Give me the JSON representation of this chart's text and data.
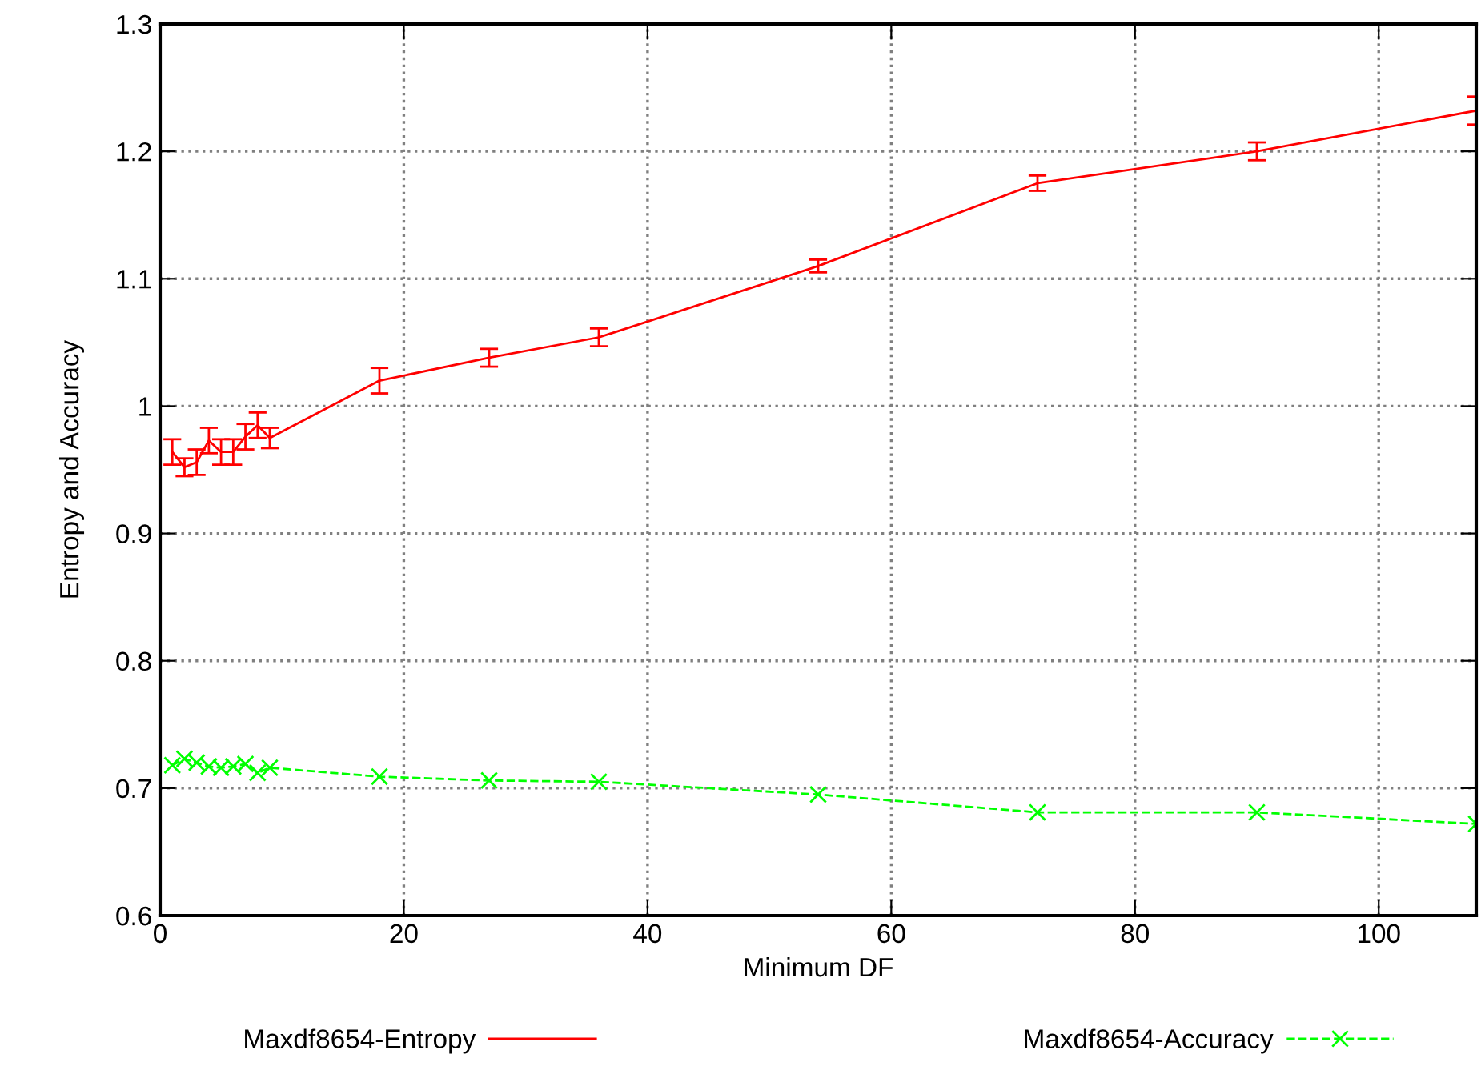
{
  "chart_data": {
    "type": "line",
    "xlabel": "Minimum DF",
    "ylabel": "Entropy and Accuracy",
    "xlim": [
      0,
      108
    ],
    "ylim": [
      0.6,
      1.3
    ],
    "xticks": [
      0,
      20,
      40,
      60,
      80,
      100
    ],
    "yticks": [
      0.6,
      0.7,
      0.8,
      0.9,
      1,
      1.1,
      1.2,
      1.3
    ],
    "grid": true,
    "legend": "bottom",
    "x": [
      1,
      2,
      3,
      4,
      5,
      6,
      7,
      8,
      9,
      18,
      27,
      36,
      54,
      72,
      90,
      108
    ],
    "series": [
      {
        "name": "Maxdf8654-Entropy",
        "color": "#ff0000",
        "marker": "none",
        "line_style": "solid",
        "values": [
          0.964,
          0.952,
          0.956,
          0.973,
          0.964,
          0.964,
          0.976,
          0.985,
          0.975,
          1.02,
          1.038,
          1.054,
          1.11,
          1.175,
          1.2,
          1.232
        ],
        "errors": [
          0.01,
          0.007,
          0.01,
          0.01,
          0.01,
          0.01,
          0.01,
          0.01,
          0.008,
          0.01,
          0.007,
          0.007,
          0.005,
          0.006,
          0.007,
          0.011
        ]
      },
      {
        "name": "Maxdf8654-Accuracy",
        "color": "#00ff00",
        "marker": "cross",
        "line_style": "dashed",
        "values": [
          0.718,
          0.723,
          0.72,
          0.717,
          0.716,
          0.717,
          0.719,
          0.712,
          0.716,
          0.709,
          0.706,
          0.705,
          0.695,
          0.681,
          0.681,
          0.672
        ]
      }
    ]
  }
}
